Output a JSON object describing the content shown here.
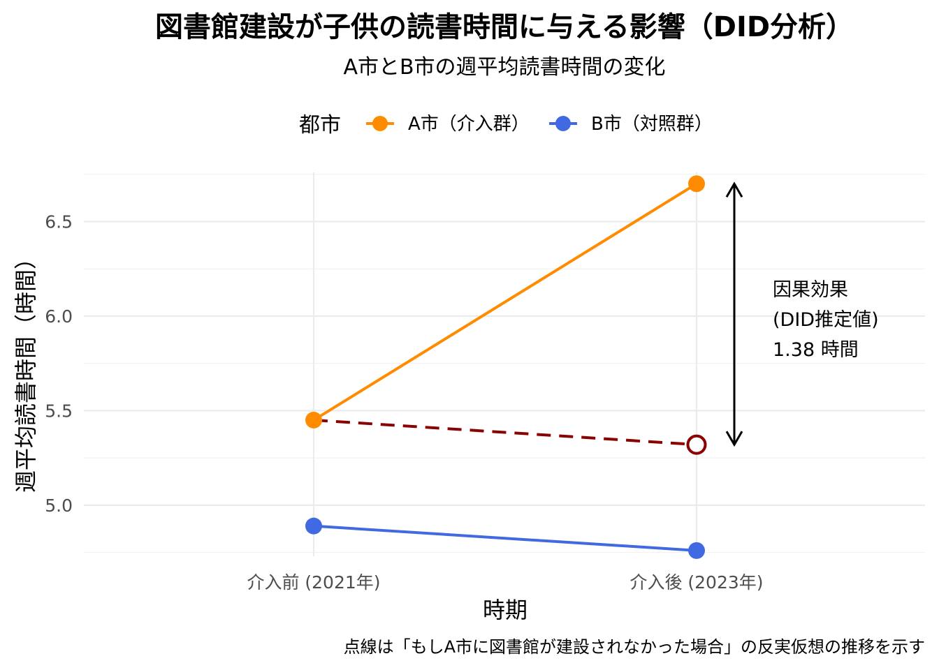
{
  "chart_data": {
    "type": "line",
    "title": "図書館建設が子供の読書時間に与える影響（DID分析）",
    "subtitle": "A市とB市の週平均読書時間の変化",
    "xlabel": "時期",
    "ylabel": "週平均読書時間（時間）",
    "categories": [
      "介入前 (2021年)",
      "介入後 (2023年)"
    ],
    "ylim": [
      4.73,
      6.76
    ],
    "yticks": [
      "5.0",
      "5.5",
      "6.0",
      "6.5"
    ],
    "grid": true,
    "legend": {
      "title": "都市",
      "position": "top",
      "entries": [
        "A市（介入群）",
        "B市（対照群）"
      ]
    },
    "series": [
      {
        "name": "A市（介入群）",
        "color": "#FF8C00",
        "values": [
          5.45,
          6.7
        ]
      },
      {
        "name": "B市（対照群）",
        "color": "#4169E1",
        "values": [
          4.89,
          4.76
        ]
      }
    ],
    "counterfactual": {
      "color": "#8B0000",
      "values": [
        5.45,
        5.32
      ],
      "style": "dashed"
    },
    "effect_annotation": {
      "lines": [
        "因果効果",
        "(DID推定値)",
        "1.38 時間"
      ],
      "from": 5.32,
      "to": 6.7
    },
    "caption": "点線は「もしA市に図書館が建設されなかった場合」の反実仮想の推移を示す"
  }
}
